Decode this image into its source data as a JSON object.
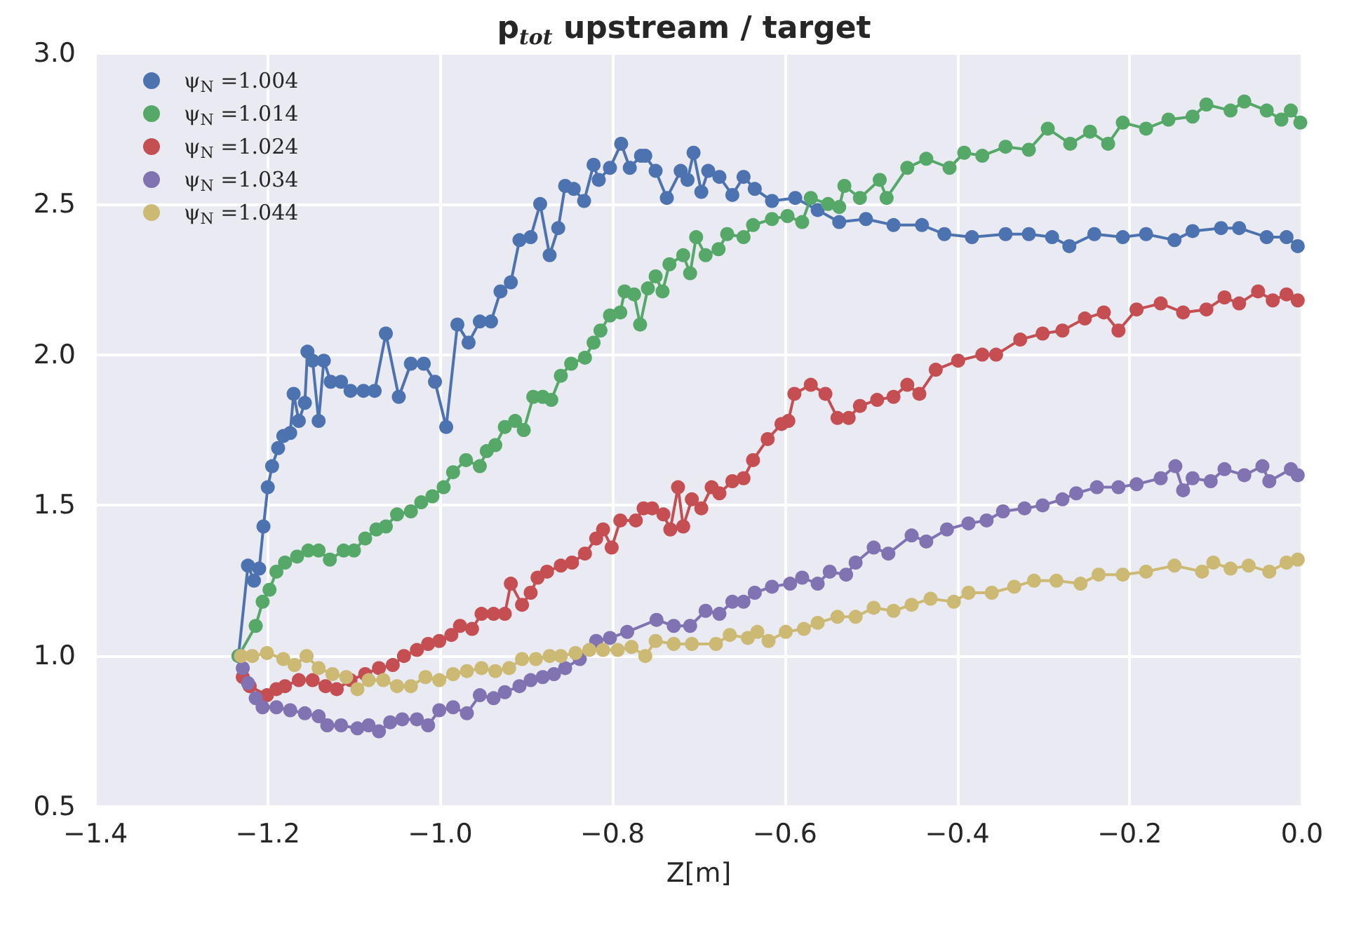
{
  "chart_data": {
    "type": "line",
    "title": "p$_{tot}$ upstream / target",
    "xlabel": "Z[m]",
    "xlim": [
      -1.4,
      0.0
    ],
    "xticks": [
      {
        "value": -1.4,
        "label": "−1.4"
      },
      {
        "value": -1.2,
        "label": "−1.2"
      },
      {
        "value": -1.0,
        "label": "−1.0"
      },
      {
        "value": -0.8,
        "label": "−0.8"
      },
      {
        "value": -0.6,
        "label": "−0.6"
      },
      {
        "value": -0.4,
        "label": "−0.4"
      },
      {
        "value": -0.2,
        "label": "−0.2"
      },
      {
        "value": 0.0,
        "label": "0.0"
      }
    ],
    "ylim": [
      0.5,
      3.0
    ],
    "yticks": [
      0.5,
      {
        "value": 1.0,
        "label": "1.0"
      },
      1.5,
      {
        "value": 2.0,
        "label": "2.0"
      },
      2.5,
      {
        "value": 3.0,
        "label": "3.0"
      }
    ],
    "grid": true,
    "legend": "top left",
    "marker": "circle",
    "line_style": "solid",
    "series": [
      {
        "name": "ψ$_{N}$ =1.004",
        "color": "#4c72b0",
        "x": [
          -1.234,
          -1.223,
          -1.216,
          -1.21,
          -1.205,
          -1.2,
          -1.195,
          -1.188,
          -1.182,
          -1.174,
          -1.17,
          -1.164,
          -1.157,
          -1.154,
          -1.148,
          -1.141,
          -1.135,
          -1.127,
          -1.115,
          -1.104,
          -1.089,
          -1.076,
          -1.063,
          -1.048,
          -1.034,
          -1.019,
          -1.006,
          -0.993,
          -0.98,
          -0.967,
          -0.954,
          -0.941,
          -0.93,
          -0.918,
          -0.908,
          -0.895,
          -0.884,
          -0.873,
          -0.863,
          -0.855,
          -0.845,
          -0.833,
          -0.822,
          -0.816,
          -0.803,
          -0.79,
          -0.78,
          -0.767,
          -0.762,
          -0.75,
          -0.737,
          -0.721,
          -0.713,
          -0.706,
          -0.697,
          -0.689,
          -0.676,
          -0.661,
          -0.648,
          -0.635,
          -0.615,
          -0.588,
          -0.562,
          -0.537,
          -0.506,
          -0.474,
          -0.441,
          -0.415,
          -0.383,
          -0.344,
          -0.317,
          -0.29,
          -0.27,
          -0.241,
          -0.208,
          -0.181,
          -0.148,
          -0.127,
          -0.094,
          -0.073,
          -0.041,
          -0.018,
          -0.005
        ],
        "values": [
          1.0,
          1.3,
          1.25,
          1.29,
          1.43,
          1.56,
          1.63,
          1.69,
          1.73,
          1.74,
          1.87,
          1.78,
          1.84,
          2.01,
          1.98,
          1.78,
          1.98,
          1.91,
          1.91,
          1.88,
          1.88,
          1.88,
          2.07,
          1.86,
          1.97,
          1.97,
          1.91,
          1.76,
          2.1,
          2.04,
          2.11,
          2.11,
          2.21,
          2.24,
          2.38,
          2.39,
          2.5,
          2.33,
          2.42,
          2.56,
          2.55,
          2.51,
          2.63,
          2.58,
          2.62,
          2.7,
          2.62,
          2.66,
          2.66,
          2.61,
          2.52,
          2.61,
          2.58,
          2.67,
          2.54,
          2.61,
          2.59,
          2.53,
          2.59,
          2.55,
          2.51,
          2.52,
          2.48,
          2.44,
          2.45,
          2.43,
          2.43,
          2.4,
          2.39,
          2.4,
          2.4,
          2.39,
          2.36,
          2.4,
          2.39,
          2.4,
          2.38,
          2.41,
          2.42,
          2.42,
          2.39,
          2.39,
          2.36
        ]
      },
      {
        "name": "ψ$_{N}$ =1.014",
        "color": "#55a868",
        "x": [
          -1.234,
          -1.214,
          -1.206,
          -1.198,
          -1.19,
          -1.18,
          -1.166,
          -1.153,
          -1.141,
          -1.128,
          -1.112,
          -1.1,
          -1.087,
          -1.074,
          -1.063,
          -1.05,
          -1.034,
          -1.022,
          -1.009,
          -0.996,
          -0.985,
          -0.97,
          -0.954,
          -0.946,
          -0.936,
          -0.925,
          -0.913,
          -0.903,
          -0.892,
          -0.881,
          -0.871,
          -0.86,
          -0.848,
          -0.832,
          -0.822,
          -0.814,
          -0.803,
          -0.791,
          -0.786,
          -0.775,
          -0.768,
          -0.759,
          -0.75,
          -0.742,
          -0.734,
          -0.718,
          -0.71,
          -0.703,
          -0.692,
          -0.677,
          -0.667,
          -0.648,
          -0.637,
          -0.615,
          -0.597,
          -0.58,
          -0.57,
          -0.55,
          -0.537,
          -0.531,
          -0.513,
          -0.49,
          -0.482,
          -0.458,
          -0.436,
          -0.409,
          -0.392,
          -0.371,
          -0.344,
          -0.317,
          -0.295,
          -0.269,
          -0.246,
          -0.225,
          -0.208,
          -0.181,
          -0.155,
          -0.127,
          -0.111,
          -0.083,
          -0.067,
          -0.041,
          -0.024,
          -0.013,
          -0.002
        ],
        "values": [
          1.0,
          1.1,
          1.18,
          1.22,
          1.28,
          1.31,
          1.33,
          1.35,
          1.35,
          1.32,
          1.35,
          1.35,
          1.39,
          1.42,
          1.43,
          1.47,
          1.48,
          1.51,
          1.53,
          1.56,
          1.61,
          1.65,
          1.63,
          1.68,
          1.7,
          1.76,
          1.78,
          1.75,
          1.86,
          1.86,
          1.85,
          1.93,
          1.97,
          1.99,
          2.04,
          2.08,
          2.13,
          2.14,
          2.21,
          2.2,
          2.1,
          2.22,
          2.26,
          2.21,
          2.3,
          2.33,
          2.27,
          2.39,
          2.33,
          2.35,
          2.4,
          2.39,
          2.43,
          2.45,
          2.46,
          2.44,
          2.52,
          2.5,
          2.49,
          2.56,
          2.52,
          2.58,
          2.52,
          2.62,
          2.65,
          2.62,
          2.67,
          2.66,
          2.69,
          2.68,
          2.75,
          2.7,
          2.74,
          2.7,
          2.77,
          2.75,
          2.78,
          2.79,
          2.83,
          2.81,
          2.84,
          2.81,
          2.78,
          2.81,
          2.77
        ]
      },
      {
        "name": "ψ$_{N}$ =1.024",
        "color": "#c44e52",
        "x": [
          -1.229,
          -1.221,
          -1.201,
          -1.19,
          -1.18,
          -1.164,
          -1.148,
          -1.133,
          -1.12,
          -1.104,
          -1.087,
          -1.071,
          -1.055,
          -1.042,
          -1.027,
          -1.014,
          -1.001,
          -0.987,
          -0.977,
          -0.963,
          -0.952,
          -0.938,
          -0.925,
          -0.918,
          -0.905,
          -0.895,
          -0.887,
          -0.876,
          -0.86,
          -0.847,
          -0.832,
          -0.819,
          -0.811,
          -0.801,
          -0.791,
          -0.773,
          -0.764,
          -0.754,
          -0.741,
          -0.733,
          -0.724,
          -0.718,
          -0.708,
          -0.697,
          -0.685,
          -0.676,
          -0.661,
          -0.648,
          -0.637,
          -0.62,
          -0.604,
          -0.596,
          -0.589,
          -0.57,
          -0.553,
          -0.539,
          -0.526,
          -0.513,
          -0.493,
          -0.474,
          -0.458,
          -0.444,
          -0.425,
          -0.399,
          -0.371,
          -0.355,
          -0.327,
          -0.301,
          -0.278,
          -0.252,
          -0.23,
          -0.213,
          -0.192,
          -0.164,
          -0.138,
          -0.111,
          -0.09,
          -0.073,
          -0.051,
          -0.034,
          -0.018,
          -0.005
        ],
        "values": [
          0.93,
          0.9,
          0.87,
          0.89,
          0.9,
          0.92,
          0.92,
          0.9,
          0.89,
          0.92,
          0.94,
          0.96,
          0.97,
          1.0,
          1.02,
          1.04,
          1.05,
          1.07,
          1.1,
          1.09,
          1.14,
          1.14,
          1.14,
          1.24,
          1.17,
          1.21,
          1.26,
          1.28,
          1.3,
          1.31,
          1.34,
          1.39,
          1.42,
          1.36,
          1.45,
          1.45,
          1.49,
          1.49,
          1.47,
          1.42,
          1.56,
          1.43,
          1.52,
          1.49,
          1.56,
          1.54,
          1.58,
          1.59,
          1.65,
          1.72,
          1.77,
          1.78,
          1.87,
          1.9,
          1.87,
          1.79,
          1.79,
          1.83,
          1.85,
          1.86,
          1.9,
          1.87,
          1.95,
          1.98,
          2.0,
          2.0,
          2.05,
          2.07,
          2.08,
          2.12,
          2.14,
          2.08,
          2.15,
          2.17,
          2.14,
          2.15,
          2.19,
          2.17,
          2.21,
          2.18,
          2.2,
          2.18
        ]
      },
      {
        "name": "ψ$_{N}$ =1.034",
        "color": "#8172b2",
        "x": [
          -1.229,
          -1.223,
          -1.214,
          -1.206,
          -1.19,
          -1.174,
          -1.157,
          -1.141,
          -1.131,
          -1.115,
          -1.096,
          -1.083,
          -1.071,
          -1.058,
          -1.044,
          -1.027,
          -1.014,
          -1.001,
          -0.985,
          -0.969,
          -0.954,
          -0.938,
          -0.925,
          -0.908,
          -0.895,
          -0.881,
          -0.868,
          -0.855,
          -0.838,
          -0.819,
          -0.803,
          -0.783,
          -0.749,
          -0.729,
          -0.71,
          -0.692,
          -0.676,
          -0.661,
          -0.648,
          -0.635,
          -0.615,
          -0.594,
          -0.58,
          -0.562,
          -0.548,
          -0.529,
          -0.518,
          -0.497,
          -0.48,
          -0.453,
          -0.436,
          -0.412,
          -0.387,
          -0.366,
          -0.347,
          -0.322,
          -0.301,
          -0.278,
          -0.262,
          -0.238,
          -0.213,
          -0.192,
          -0.164,
          -0.147,
          -0.138,
          -0.127,
          -0.106,
          -0.09,
          -0.067,
          -0.046,
          -0.038,
          -0.013,
          -0.005
        ],
        "values": [
          0.96,
          0.91,
          0.86,
          0.83,
          0.83,
          0.82,
          0.81,
          0.8,
          0.77,
          0.77,
          0.76,
          0.77,
          0.75,
          0.78,
          0.79,
          0.79,
          0.77,
          0.82,
          0.83,
          0.81,
          0.87,
          0.86,
          0.88,
          0.9,
          0.92,
          0.93,
          0.94,
          0.96,
          0.99,
          1.05,
          1.06,
          1.08,
          1.12,
          1.1,
          1.1,
          1.15,
          1.14,
          1.18,
          1.18,
          1.21,
          1.23,
          1.24,
          1.26,
          1.24,
          1.28,
          1.27,
          1.31,
          1.36,
          1.34,
          1.4,
          1.38,
          1.42,
          1.44,
          1.45,
          1.48,
          1.49,
          1.5,
          1.52,
          1.54,
          1.56,
          1.56,
          1.57,
          1.59,
          1.63,
          1.55,
          1.59,
          1.58,
          1.62,
          1.6,
          1.63,
          1.58,
          1.62,
          1.6
        ]
      },
      {
        "name": "ψ$_{N}$ =1.044",
        "color": "#ccb974",
        "x": [
          -1.231,
          -1.218,
          -1.201,
          -1.182,
          -1.169,
          -1.155,
          -1.141,
          -1.125,
          -1.109,
          -1.096,
          -1.083,
          -1.066,
          -1.05,
          -1.034,
          -1.017,
          -1.001,
          -0.985,
          -0.969,
          -0.952,
          -0.936,
          -0.92,
          -0.905,
          -0.889,
          -0.873,
          -0.86,
          -0.843,
          -0.827,
          -0.811,
          -0.794,
          -0.778,
          -0.762,
          -0.75,
          -0.729,
          -0.708,
          -0.68,
          -0.664,
          -0.643,
          -0.632,
          -0.619,
          -0.599,
          -0.578,
          -0.562,
          -0.539,
          -0.518,
          -0.497,
          -0.474,
          -0.453,
          -0.431,
          -0.404,
          -0.387,
          -0.36,
          -0.334,
          -0.311,
          -0.285,
          -0.257,
          -0.236,
          -0.208,
          -0.181,
          -0.148,
          -0.116,
          -0.103,
          -0.083,
          -0.062,
          -0.038,
          -0.018,
          -0.005
        ],
        "values": [
          1.0,
          1.0,
          1.01,
          0.99,
          0.97,
          1.0,
          0.96,
          0.94,
          0.93,
          0.89,
          0.92,
          0.92,
          0.9,
          0.9,
          0.93,
          0.92,
          0.94,
          0.95,
          0.96,
          0.95,
          0.96,
          0.99,
          0.99,
          1.0,
          1.0,
          1.01,
          1.02,
          1.02,
          1.02,
          1.03,
          1.0,
          1.05,
          1.04,
          1.04,
          1.04,
          1.07,
          1.06,
          1.08,
          1.05,
          1.08,
          1.09,
          1.11,
          1.13,
          1.13,
          1.16,
          1.15,
          1.17,
          1.19,
          1.18,
          1.21,
          1.21,
          1.23,
          1.25,
          1.25,
          1.24,
          1.27,
          1.27,
          1.28,
          1.3,
          1.28,
          1.31,
          1.29,
          1.3,
          1.28,
          1.31,
          1.32
        ]
      }
    ]
  }
}
